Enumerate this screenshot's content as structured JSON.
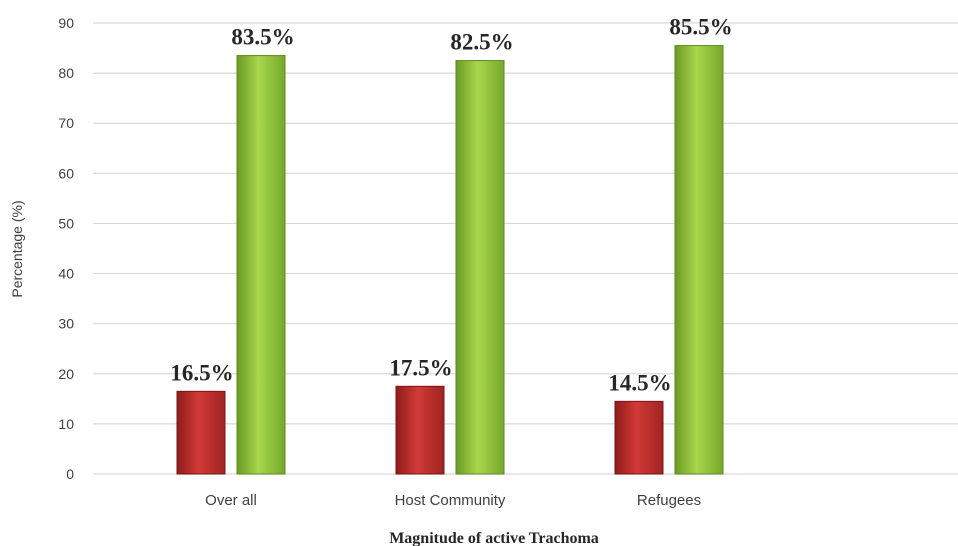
{
  "chart_data": {
    "type": "bar",
    "categories": [
      "Over all",
      "Host Community",
      "Refugees"
    ],
    "series": [
      {
        "values": [
          16.5,
          17.5,
          14.5
        ],
        "labels": [
          "16.5%",
          "17.5%",
          "14.5%"
        ],
        "color": "#c0312f"
      },
      {
        "values": [
          83.5,
          82.5,
          85.5
        ],
        "labels": [
          "83.5%",
          "82.5%",
          "85.5%"
        ],
        "color": "#8fc23a"
      }
    ],
    "xlabel": "Magnitude of active Trachoma",
    "ylabel": "Percentage (%)",
    "ylim": [
      0,
      90
    ],
    "yticks": [
      0,
      10,
      20,
      30,
      40,
      50,
      60,
      70,
      80,
      90
    ],
    "grid": true,
    "legend": "none"
  }
}
